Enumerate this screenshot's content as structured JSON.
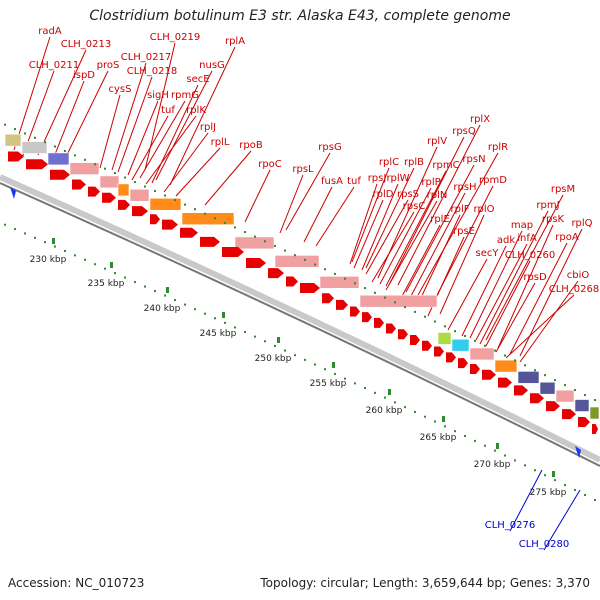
{
  "title": "Clostridium botulinum E3 str. Alaska E43, complete genome",
  "footer": {
    "accession": "Accession: NC_010723",
    "summary": "Topology: circular; Length: 3,659,644 bp; Genes: 3,370"
  },
  "scale_ticks": [
    "230 kbp",
    "235 kbp",
    "240 kbp",
    "245 kbp",
    "250 kbp",
    "255 kbp",
    "260 kbp",
    "265 kbp",
    "270 kbp",
    "275 kbp"
  ],
  "colors": {
    "gene_label": "#cc0000",
    "gene_label_minus": "#0000cc",
    "forward_arrow": "#e60000",
    "reverse_arrow": "#1a33ff",
    "scale_dots": "#2e8b2e"
  },
  "gene_labels": [
    {
      "text": "radA",
      "strand": "+"
    },
    {
      "text": "CLH_0213",
      "strand": "+"
    },
    {
      "text": "CLH_0211",
      "strand": "+"
    },
    {
      "text": "ispD",
      "strand": "+"
    },
    {
      "text": "proS",
      "strand": "+"
    },
    {
      "text": "CLH_0219",
      "strand": "+"
    },
    {
      "text": "CLH_0217",
      "strand": "+"
    },
    {
      "text": "CLH_0218",
      "strand": "+"
    },
    {
      "text": "rplA",
      "strand": "+"
    },
    {
      "text": "nusG",
      "strand": "+"
    },
    {
      "text": "secE",
      "strand": "+"
    },
    {
      "text": "cysS",
      "strand": "+"
    },
    {
      "text": "sigH",
      "strand": "+"
    },
    {
      "text": "rpmG",
      "strand": "+"
    },
    {
      "text": "tuf",
      "strand": "+"
    },
    {
      "text": "rplK",
      "strand": "+"
    },
    {
      "text": "rplJ",
      "strand": "+"
    },
    {
      "text": "rplL",
      "strand": "+"
    },
    {
      "text": "rpoB",
      "strand": "+"
    },
    {
      "text": "rpoC",
      "strand": "+"
    },
    {
      "text": "rpsG",
      "strand": "+"
    },
    {
      "text": "rpsL",
      "strand": "+"
    },
    {
      "text": "fusA",
      "strand": "+"
    },
    {
      "text": "tuf",
      "strand": "+"
    },
    {
      "text": "rplX",
      "strand": "+"
    },
    {
      "text": "rpsQ",
      "strand": "+"
    },
    {
      "text": "rplV",
      "strand": "+"
    },
    {
      "text": "rplR",
      "strand": "+"
    },
    {
      "text": "rpmC",
      "strand": "+"
    },
    {
      "text": "rpsN",
      "strand": "+"
    },
    {
      "text": "rplC",
      "strand": "+"
    },
    {
      "text": "rplB",
      "strand": "+"
    },
    {
      "text": "rplP",
      "strand": "+"
    },
    {
      "text": "rpsJ",
      "strand": "+"
    },
    {
      "text": "rplW",
      "strand": "+"
    },
    {
      "text": "rplD",
      "strand": "+"
    },
    {
      "text": "rpsS",
      "strand": "+"
    },
    {
      "text": "rplN",
      "strand": "+"
    },
    {
      "text": "rpsH",
      "strand": "+"
    },
    {
      "text": "rpmD",
      "strand": "+"
    },
    {
      "text": "rpsC",
      "strand": "+"
    },
    {
      "text": "rplF",
      "strand": "+"
    },
    {
      "text": "rplO",
      "strand": "+"
    },
    {
      "text": "rplE",
      "strand": "+"
    },
    {
      "text": "rpsE",
      "strand": "+"
    },
    {
      "text": "secY",
      "strand": "+"
    },
    {
      "text": "rpsM",
      "strand": "+"
    },
    {
      "text": "rpmJ",
      "strand": "+"
    },
    {
      "text": "map",
      "strand": "+"
    },
    {
      "text": "rpsK",
      "strand": "+"
    },
    {
      "text": "rplQ",
      "strand": "+"
    },
    {
      "text": "adk",
      "strand": "+"
    },
    {
      "text": "infA",
      "strand": "+"
    },
    {
      "text": "rpoA",
      "strand": "+"
    },
    {
      "text": "CLH_0260",
      "strand": "+"
    },
    {
      "text": "rpsD",
      "strand": "+"
    },
    {
      "text": "cbiO",
      "strand": "+"
    },
    {
      "text": "CLH_0268",
      "strand": "+"
    },
    {
      "text": "CLH_0276",
      "strand": "-"
    },
    {
      "text": "CLH_0280",
      "strand": "-"
    }
  ]
}
